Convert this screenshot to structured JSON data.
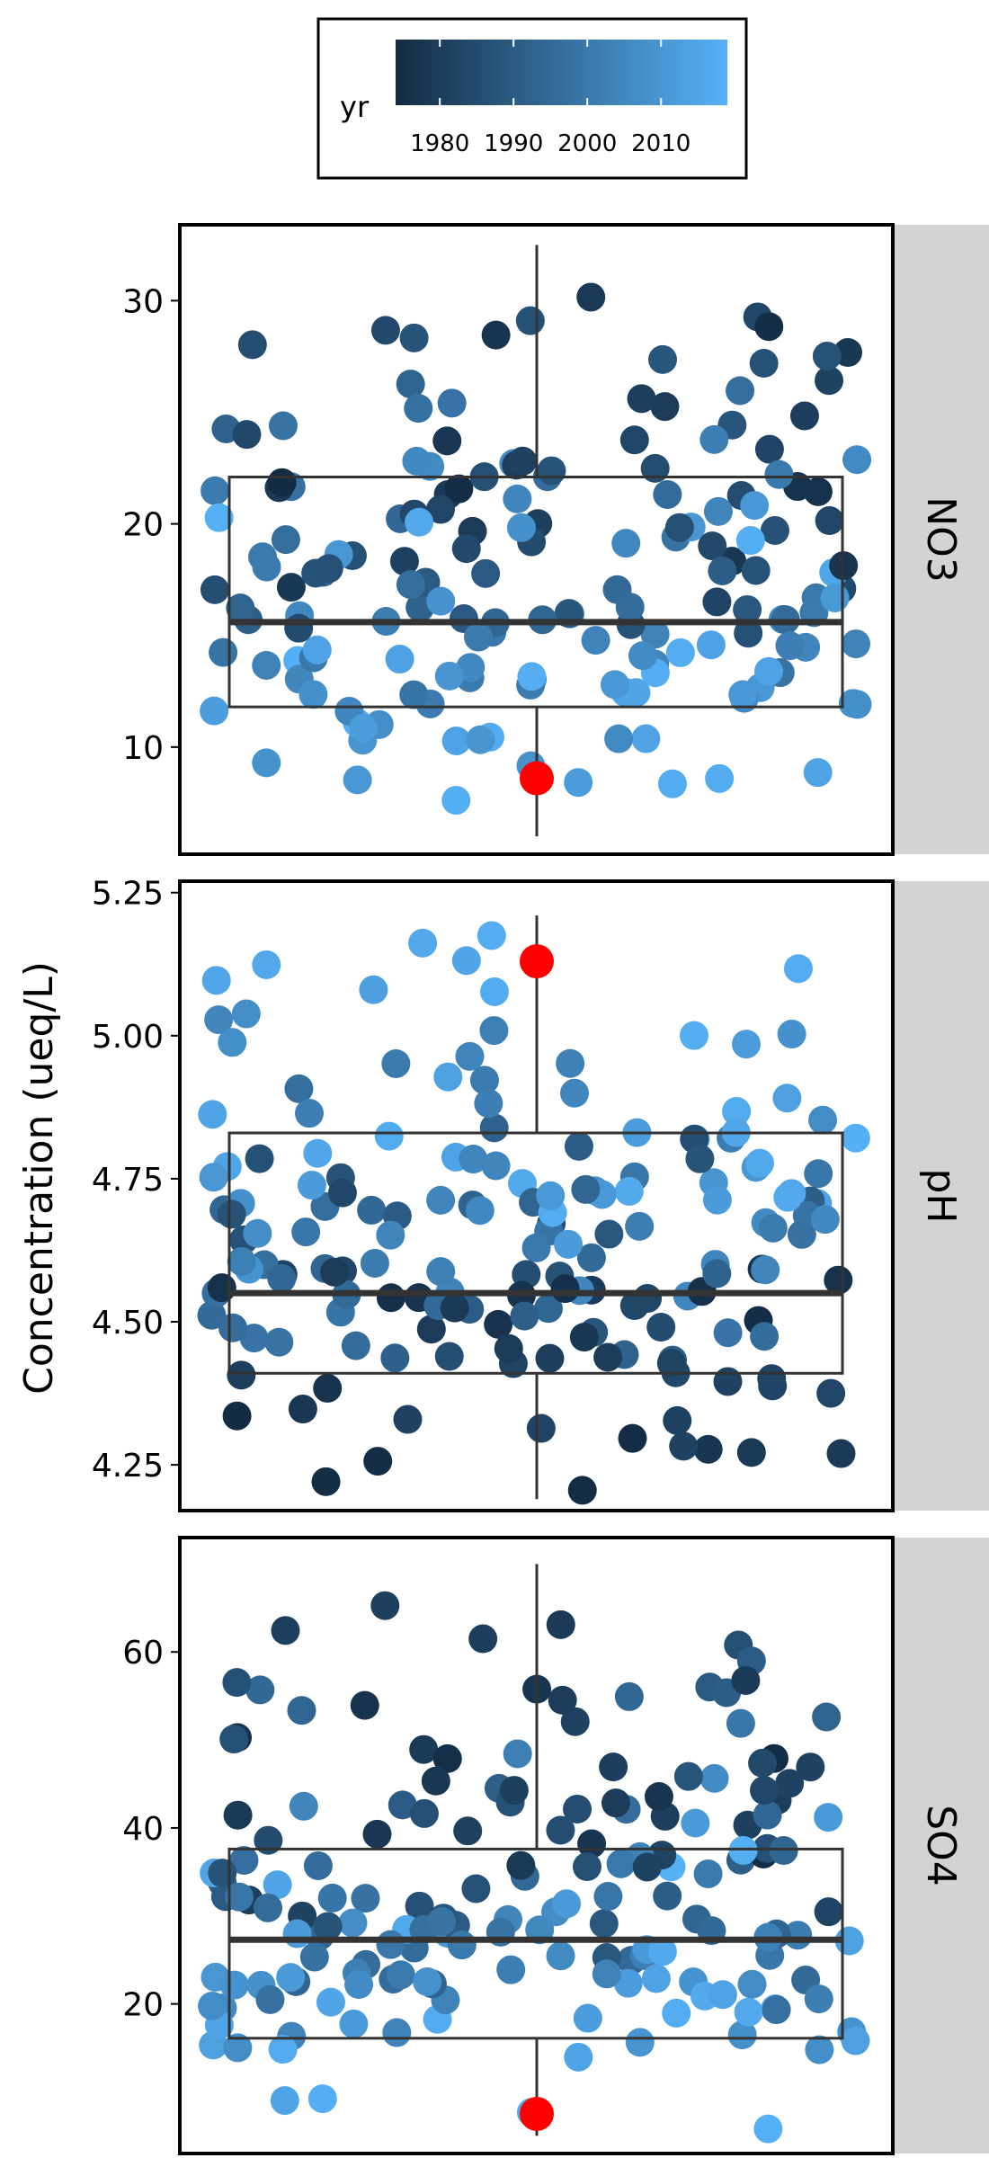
{
  "chart_data": {
    "type": "scatter",
    "subtype": "faceted jittered strip plot with boxplot overlay",
    "ylabel": "Concentration (ueq/L)",
    "xlabel": "",
    "legend": {
      "title": "yr",
      "placement": "top-center",
      "type": "continuous color bar",
      "ticks": [
        "1980",
        "1990",
        "2000",
        "2010"
      ],
      "range": [
        1974,
        2019
      ],
      "color_low": "#132B43",
      "color_high": "#56B1F7"
    },
    "highlight_color": "#FF0000",
    "box_color": "#333333",
    "strip_color": "#D3D3D3",
    "facets": [
      {
        "label": "NO3",
        "ylim": [
          5.2,
          33.4
        ],
        "yticks": [
          10,
          20,
          30
        ],
        "ytick_labels": [
          "10",
          "20",
          "30"
        ],
        "box": {
          "lower": 11.8,
          "median": 15.6,
          "upper": 22.1,
          "whisker_low": 6.0,
          "whisker_high": 32.5
        },
        "highlight": 8.6,
        "n_points": 170
      },
      {
        "label": "pH",
        "ylim": [
          4.17,
          5.27
        ],
        "yticks": [
          4.25,
          4.5,
          4.75,
          5.0,
          5.25
        ],
        "ytick_labels": [
          "4.25",
          "4.50",
          "4.75",
          "5.00",
          "5.25"
        ],
        "box": {
          "lower": 4.41,
          "median": 4.55,
          "upper": 4.83,
          "whisker_low": 4.19,
          "whisker_high": 5.21
        },
        "highlight": 5.13,
        "n_points": 170
      },
      {
        "label": "SO4",
        "ylim": [
          3.0,
          73.0
        ],
        "yticks": [
          20,
          40,
          60
        ],
        "ytick_labels": [
          "20",
          "40",
          "60"
        ],
        "box": {
          "lower": 16.1,
          "median": 27.3,
          "upper": 37.6,
          "whisker_low": 5.0,
          "whisker_high": 70.0
        },
        "highlight": 7.5,
        "n_points": 170
      }
    ]
  }
}
